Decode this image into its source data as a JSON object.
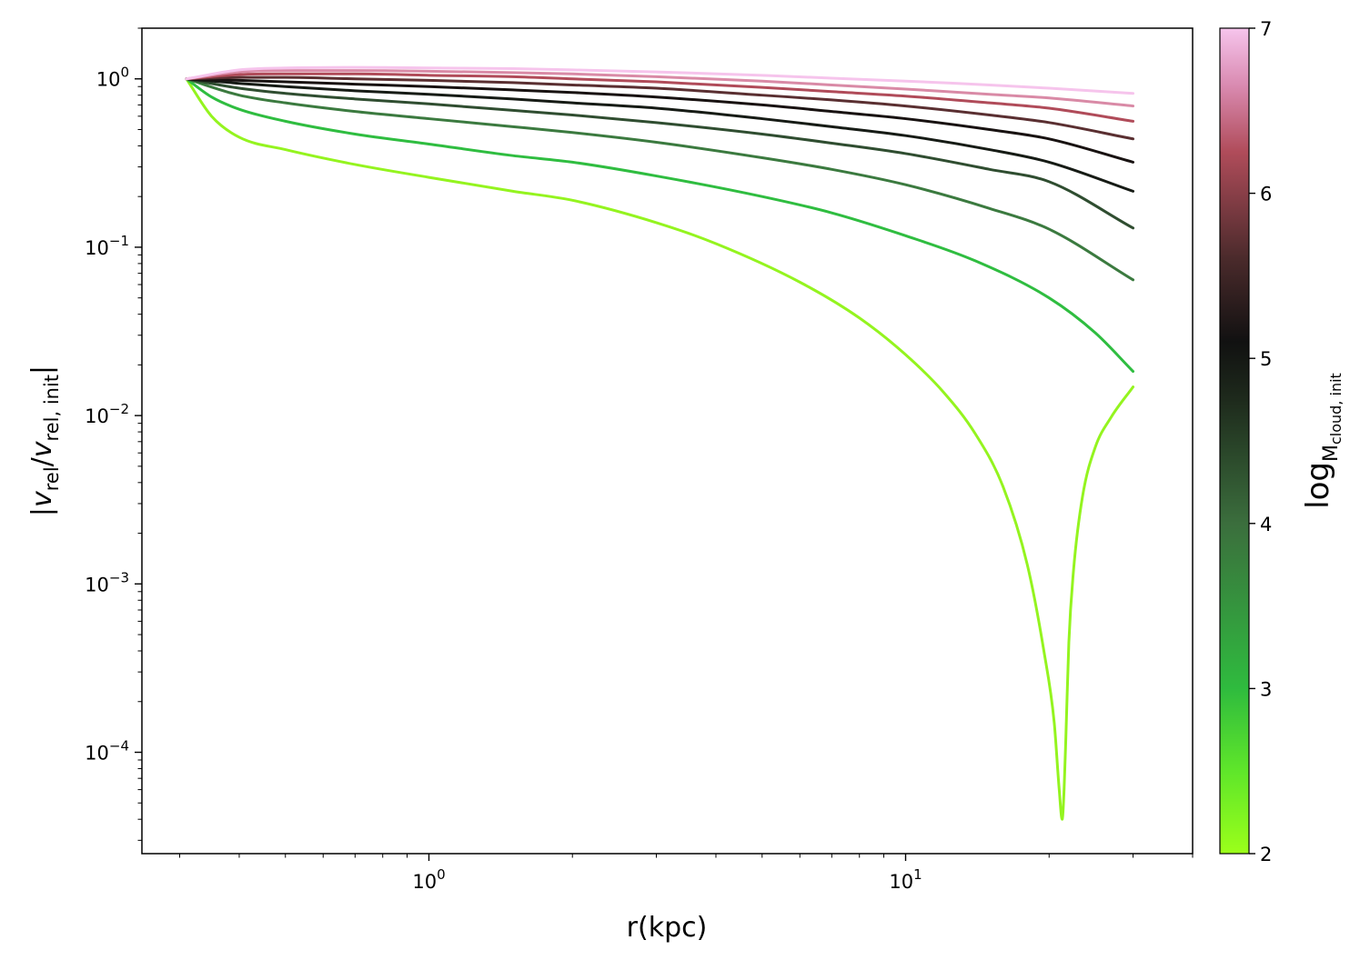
{
  "chart_data": {
    "type": "line",
    "xlabel": "r(kpc)",
    "ylabel": "|v_rel/v_rel, init|",
    "xscale": "log",
    "yscale": "log",
    "xlim": [
      0.25,
      40
    ],
    "ylim": [
      2.5e-05,
      2.0
    ],
    "x_tick_labels": [
      {
        "value": 1,
        "mantissa": "10",
        "exp": "0"
      },
      {
        "value": 10,
        "mantissa": "10",
        "exp": "1"
      }
    ],
    "y_tick_labels": [
      {
        "value": 1,
        "mantissa": "10",
        "exp": "0"
      },
      {
        "value": 0.1,
        "mantissa": "10",
        "exp": "−1"
      },
      {
        "value": 0.01,
        "mantissa": "10",
        "exp": "−2"
      },
      {
        "value": 0.001,
        "mantissa": "10",
        "exp": "−3"
      },
      {
        "value": 0.0001,
        "mantissa": "10",
        "exp": "−4"
      }
    ],
    "grid": false,
    "colorbar": {
      "label": "log",
      "label_sub": "M",
      "label_subsub": "cloud, init",
      "range": [
        2,
        7
      ],
      "tick_labels": [
        "2",
        "3",
        "4",
        "5",
        "6",
        "7"
      ],
      "colormap": [
        "#9bff1a",
        "#2fbb3e",
        "#3b6e3d",
        "#111111",
        "#b04c5a",
        "#f6c4ec"
      ]
    },
    "series": [
      {
        "logM": 2.0,
        "color": "#94f41f",
        "x": [
          0.31,
          0.35,
          0.4,
          0.5,
          0.7,
          1.0,
          1.5,
          2.0,
          3.0,
          4.0,
          6.0,
          8.0,
          10.0,
          12.0,
          14.0,
          16.0,
          18.0,
          19.5,
          20.5,
          21.0,
          21.3,
          21.5,
          21.7,
          22.0,
          22.5,
          23.5,
          25.0,
          27.0,
          30.0
        ],
        "y": [
          1.0,
          0.6,
          0.45,
          0.38,
          0.31,
          0.26,
          0.215,
          0.19,
          0.14,
          0.105,
          0.062,
          0.038,
          0.023,
          0.0138,
          0.0078,
          0.0038,
          0.0013,
          0.0004,
          0.00015,
          6e-05,
          4e-05,
          6e-05,
          0.00013,
          0.00045,
          0.0012,
          0.0033,
          0.0065,
          0.0098,
          0.0148
        ]
      },
      {
        "logM": 2.5,
        "color": "#2fbd40",
        "x": [
          0.31,
          0.35,
          0.4,
          0.5,
          0.7,
          1.0,
          1.5,
          2.0,
          3.0,
          5.0,
          7.0,
          10.0,
          14.0,
          20.0,
          25.0,
          30.0
        ],
        "y": [
          1.0,
          0.78,
          0.66,
          0.56,
          0.47,
          0.41,
          0.35,
          0.32,
          0.265,
          0.2,
          0.16,
          0.117,
          0.083,
          0.05,
          0.031,
          0.0183
        ]
      },
      {
        "logM": 3.0,
        "color": "#3b7a3f",
        "x": [
          0.31,
          0.4,
          0.5,
          0.7,
          1.0,
          1.5,
          2.0,
          3.0,
          5.0,
          7.0,
          10.0,
          15.0,
          20.0,
          30.0
        ],
        "y": [
          1.0,
          0.8,
          0.72,
          0.64,
          0.58,
          0.52,
          0.48,
          0.42,
          0.34,
          0.29,
          0.235,
          0.17,
          0.128,
          0.064
        ]
      },
      {
        "logM": 3.5,
        "color": "#2f4d30",
        "x": [
          0.31,
          0.4,
          0.5,
          0.7,
          1.0,
          1.5,
          2.0,
          3.0,
          5.0,
          7.0,
          10.0,
          15.0,
          20.0,
          30.0
        ],
        "y": [
          1.0,
          0.88,
          0.82,
          0.76,
          0.71,
          0.65,
          0.61,
          0.55,
          0.47,
          0.415,
          0.36,
          0.29,
          0.245,
          0.13
        ]
      },
      {
        "logM": 4.0,
        "color": "#161b15",
        "x": [
          0.31,
          0.4,
          0.5,
          0.7,
          1.0,
          1.5,
          2.0,
          3.0,
          5.0,
          7.0,
          10.0,
          15.0,
          20.0,
          30.0
        ],
        "y": [
          1.0,
          0.94,
          0.9,
          0.85,
          0.81,
          0.76,
          0.72,
          0.67,
          0.58,
          0.52,
          0.46,
          0.38,
          0.32,
          0.215
        ]
      },
      {
        "logM": 4.5,
        "color": "#181211",
        "x": [
          0.31,
          0.4,
          0.5,
          0.7,
          1.0,
          1.5,
          2.0,
          3.0,
          5.0,
          7.0,
          10.0,
          15.0,
          20.0,
          30.0
        ],
        "y": [
          1.0,
          0.98,
          0.96,
          0.93,
          0.9,
          0.86,
          0.83,
          0.78,
          0.7,
          0.64,
          0.58,
          0.5,
          0.44,
          0.32
        ]
      },
      {
        "logM": 5.0,
        "color": "#5a2f31",
        "x": [
          0.31,
          0.4,
          0.5,
          0.7,
          1.0,
          1.5,
          2.0,
          3.0,
          5.0,
          7.0,
          10.0,
          15.0,
          20.0,
          30.0
        ],
        "y": [
          1.0,
          1.02,
          1.02,
          1.0,
          0.98,
          0.95,
          0.92,
          0.88,
          0.8,
          0.75,
          0.69,
          0.61,
          0.55,
          0.44
        ]
      },
      {
        "logM": 5.5,
        "color": "#b04b59",
        "x": [
          0.31,
          0.4,
          0.5,
          0.7,
          1.0,
          1.5,
          2.0,
          3.0,
          5.0,
          7.0,
          10.0,
          15.0,
          20.0,
          30.0
        ],
        "y": [
          1.0,
          1.06,
          1.07,
          1.07,
          1.05,
          1.03,
          1.0,
          0.96,
          0.89,
          0.84,
          0.79,
          0.72,
          0.67,
          0.56
        ]
      },
      {
        "logM": 6.0,
        "color": "#d98aa6",
        "x": [
          0.31,
          0.4,
          0.5,
          0.7,
          1.0,
          1.5,
          2.0,
          3.0,
          5.0,
          7.0,
          10.0,
          15.0,
          20.0,
          30.0
        ],
        "y": [
          1.0,
          1.1,
          1.12,
          1.12,
          1.11,
          1.09,
          1.07,
          1.03,
          0.97,
          0.92,
          0.87,
          0.81,
          0.77,
          0.69
        ]
      },
      {
        "logM": 6.5,
        "color": "#f6c4ec",
        "x": [
          0.31,
          0.4,
          0.5,
          0.7,
          1.0,
          1.5,
          2.0,
          3.0,
          5.0,
          7.0,
          10.0,
          15.0,
          20.0,
          30.0
        ],
        "y": [
          1.0,
          1.13,
          1.16,
          1.17,
          1.16,
          1.15,
          1.13,
          1.1,
          1.05,
          1.01,
          0.97,
          0.92,
          0.88,
          0.82
        ]
      }
    ]
  }
}
